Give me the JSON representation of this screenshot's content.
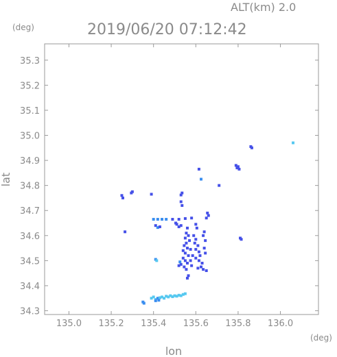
{
  "header": {
    "alt_label": "ALT(km)  2.0",
    "timestamp": "2019/06/20 07:12:42",
    "lat_unit": "(deg)",
    "lon_unit": "(deg)"
  },
  "chart_data": {
    "type": "scatter",
    "title": "2019/06/20 07:12:42",
    "subtitle": "ALT(km)  2.0",
    "xlabel": "lon",
    "ylabel": "lat",
    "xunit": "(deg)",
    "yunit": "(deg)",
    "xlim": [
      134.885,
      136.18
    ],
    "ylim": [
      34.285,
      35.365
    ],
    "xticks": [
      135.0,
      135.2,
      135.4,
      135.6,
      135.8,
      136.0
    ],
    "yticks": [
      34.3,
      34.4,
      34.5,
      34.6,
      34.7,
      34.8,
      34.9,
      35.0,
      35.1,
      35.2,
      35.3
    ],
    "grid": false,
    "colors": {
      "weak": "#55c8f0",
      "mid": "#3a8ef0",
      "strong": "#4550e8"
    },
    "points": [
      [
        136.06,
        34.97,
        "weak"
      ],
      [
        135.86,
        34.955,
        "strong"
      ],
      [
        135.865,
        34.95,
        "strong"
      ],
      [
        135.79,
        34.88,
        "strong"
      ],
      [
        135.8,
        34.875,
        "strong"
      ],
      [
        135.795,
        34.87,
        "strong"
      ],
      [
        135.805,
        34.865,
        "strong"
      ],
      [
        135.615,
        34.865,
        "strong"
      ],
      [
        135.625,
        34.825,
        "mid"
      ],
      [
        135.71,
        34.8,
        "strong"
      ],
      [
        135.25,
        34.76,
        "strong"
      ],
      [
        135.255,
        34.75,
        "strong"
      ],
      [
        135.3,
        34.775,
        "strong"
      ],
      [
        135.295,
        34.77,
        "strong"
      ],
      [
        135.39,
        34.765,
        "strong"
      ],
      [
        135.535,
        34.77,
        "strong"
      ],
      [
        135.53,
        34.762,
        "strong"
      ],
      [
        135.53,
        34.735,
        "strong"
      ],
      [
        135.535,
        34.72,
        "strong"
      ],
      [
        135.4,
        34.665,
        "mid"
      ],
      [
        135.42,
        34.665,
        "mid"
      ],
      [
        135.44,
        34.665,
        "mid"
      ],
      [
        135.46,
        34.665,
        "mid"
      ],
      [
        135.49,
        34.665,
        "strong"
      ],
      [
        135.52,
        34.665,
        "strong"
      ],
      [
        135.55,
        34.668,
        "strong"
      ],
      [
        135.58,
        34.67,
        "strong"
      ],
      [
        135.41,
        34.64,
        "strong"
      ],
      [
        135.42,
        34.632,
        "mid"
      ],
      [
        135.43,
        34.635,
        "strong"
      ],
      [
        135.505,
        34.65,
        "strong"
      ],
      [
        135.51,
        34.645,
        "strong"
      ],
      [
        135.52,
        34.635,
        "strong"
      ],
      [
        135.53,
        34.64,
        "strong"
      ],
      [
        135.6,
        34.645,
        "strong"
      ],
      [
        135.605,
        34.63,
        "strong"
      ],
      [
        135.655,
        34.69,
        "strong"
      ],
      [
        135.66,
        34.68,
        "strong"
      ],
      [
        135.65,
        34.67,
        "strong"
      ],
      [
        135.64,
        34.615,
        "strong"
      ],
      [
        135.635,
        34.6,
        "strong"
      ],
      [
        135.645,
        34.58,
        "strong"
      ],
      [
        135.64,
        34.55,
        "strong"
      ],
      [
        135.645,
        34.53,
        "strong"
      ],
      [
        135.265,
        34.615,
        "strong"
      ],
      [
        135.81,
        34.59,
        "strong"
      ],
      [
        135.815,
        34.585,
        "strong"
      ],
      [
        135.56,
        34.63,
        "strong"
      ],
      [
        135.555,
        34.61,
        "strong"
      ],
      [
        135.565,
        34.6,
        "strong"
      ],
      [
        135.55,
        34.59,
        "strong"
      ],
      [
        135.57,
        34.58,
        "strong"
      ],
      [
        135.555,
        34.57,
        "strong"
      ],
      [
        135.545,
        34.56,
        "strong"
      ],
      [
        135.56,
        34.55,
        "strong"
      ],
      [
        135.575,
        34.545,
        "strong"
      ],
      [
        135.54,
        34.54,
        "strong"
      ],
      [
        135.55,
        34.53,
        "strong"
      ],
      [
        135.565,
        34.52,
        "strong"
      ],
      [
        135.54,
        34.51,
        "strong"
      ],
      [
        135.55,
        34.5,
        "strong"
      ],
      [
        135.56,
        34.49,
        "strong"
      ],
      [
        135.53,
        34.485,
        "strong"
      ],
      [
        135.545,
        34.475,
        "strong"
      ],
      [
        135.555,
        34.465,
        "strong"
      ],
      [
        135.59,
        34.6,
        "strong"
      ],
      [
        135.6,
        34.585,
        "strong"
      ],
      [
        135.595,
        34.57,
        "strong"
      ],
      [
        135.61,
        34.56,
        "strong"
      ],
      [
        135.6,
        34.545,
        "strong"
      ],
      [
        135.615,
        34.535,
        "strong"
      ],
      [
        135.62,
        34.52,
        "strong"
      ],
      [
        135.6,
        34.51,
        "strong"
      ],
      [
        135.615,
        34.5,
        "strong"
      ],
      [
        135.63,
        34.49,
        "strong"
      ],
      [
        135.625,
        34.475,
        "strong"
      ],
      [
        135.635,
        34.465,
        "strong"
      ],
      [
        135.61,
        34.47,
        "strong"
      ],
      [
        135.65,
        34.46,
        "strong"
      ],
      [
        135.58,
        34.48,
        "strong"
      ],
      [
        135.585,
        34.52,
        "strong"
      ],
      [
        135.575,
        34.5,
        "strong"
      ],
      [
        135.525,
        34.495,
        "mid"
      ],
      [
        135.52,
        34.48,
        "strong"
      ],
      [
        135.56,
        34.43,
        "strong"
      ],
      [
        135.565,
        34.44,
        "strong"
      ],
      [
        135.41,
        34.505,
        "mid"
      ],
      [
        135.415,
        34.5,
        "weak"
      ],
      [
        135.35,
        34.335,
        "mid"
      ],
      [
        135.355,
        34.33,
        "mid"
      ],
      [
        135.39,
        34.35,
        "weak"
      ],
      [
        135.4,
        34.355,
        "weak"
      ],
      [
        135.41,
        34.345,
        "weak"
      ],
      [
        135.42,
        34.35,
        "mid"
      ],
      [
        135.43,
        34.352,
        "weak"
      ],
      [
        135.44,
        34.355,
        "weak"
      ],
      [
        135.45,
        34.35,
        "weak"
      ],
      [
        135.46,
        34.358,
        "weak"
      ],
      [
        135.47,
        34.355,
        "weak"
      ],
      [
        135.48,
        34.36,
        "weak"
      ],
      [
        135.49,
        34.356,
        "weak"
      ],
      [
        135.5,
        34.36,
        "weak"
      ],
      [
        135.51,
        34.358,
        "weak"
      ],
      [
        135.52,
        34.362,
        "weak"
      ],
      [
        135.53,
        34.36,
        "weak"
      ],
      [
        135.54,
        34.365,
        "weak"
      ],
      [
        135.55,
        34.368,
        "weak"
      ],
      [
        135.41,
        34.34,
        "mid"
      ],
      [
        135.425,
        34.342,
        "mid"
      ]
    ]
  }
}
